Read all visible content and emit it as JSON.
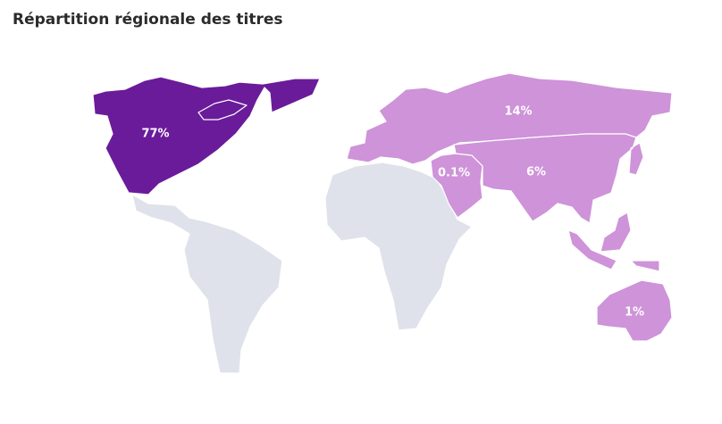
{
  "title": "Répartition régionale des titres",
  "colors": {
    "high": "#6a1b9a",
    "low": "#ce93d8",
    "no_data": "#dfe2ea"
  },
  "chart_data": {
    "type": "choropleth",
    "title": "Répartition régionale des titres",
    "regions": [
      {
        "id": "north-america",
        "label": "77%",
        "value": 77,
        "level": "high"
      },
      {
        "id": "europe-russia",
        "label": "14%",
        "value": 14,
        "level": "low"
      },
      {
        "id": "asia",
        "label": "6%",
        "value": 6,
        "level": "low"
      },
      {
        "id": "oceania",
        "label": "1%",
        "value": 1,
        "level": "low"
      },
      {
        "id": "middle-east",
        "label": "0.1%",
        "value": 0.1,
        "level": "low"
      },
      {
        "id": "south-america",
        "label": "",
        "value": null,
        "level": "no_data"
      },
      {
        "id": "africa",
        "label": "",
        "value": null,
        "level": "no_data"
      }
    ]
  }
}
